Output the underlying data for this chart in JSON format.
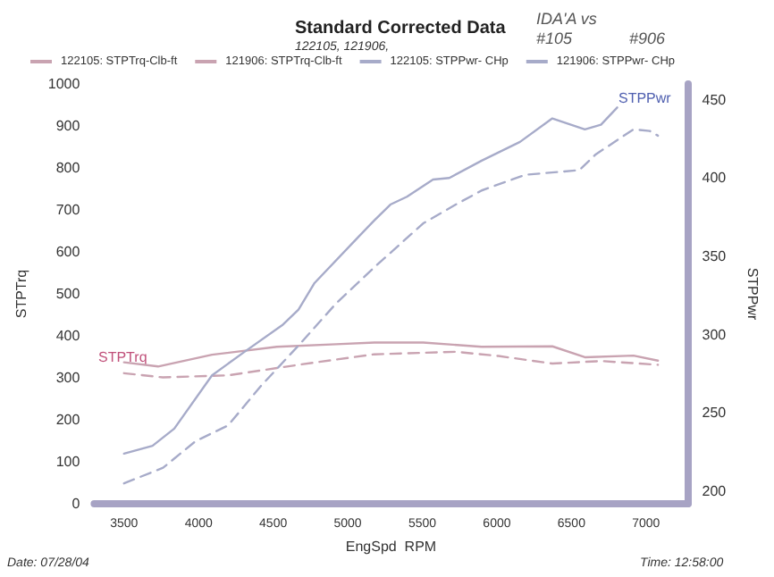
{
  "chart_data": {
    "type": "line",
    "title": "Standard Corrected Data",
    "subtitle": "122105, 121906,",
    "xlabel": "EngSpd  RPM",
    "ylabel": "STPTrq",
    "y2label": "STPPwr",
    "xlim": [
      3300,
      7280
    ],
    "xticks": [
      3500,
      4000,
      4500,
      5000,
      5500,
      6000,
      6500,
      7000
    ],
    "ylim": [
      0,
      1000
    ],
    "yticks": [
      0,
      100,
      200,
      300,
      400,
      500,
      600,
      700,
      800,
      900,
      1000
    ],
    "y2lim": [
      192,
      460
    ],
    "y2ticks": [
      200,
      250,
      300,
      350,
      400,
      450
    ],
    "grid": false,
    "legend": "top",
    "marker": "none",
    "series": [
      {
        "name": "122105: STPTrq-Clb-ft",
        "color": "#c9a3b1",
        "line_style": "solid",
        "x": [
          3500,
          3728,
          4090,
          4525,
          4923,
          5179,
          5506,
          5898,
          6372,
          6590,
          6916,
          7080
        ],
        "values": [
          337,
          327,
          355,
          374,
          380,
          384,
          384,
          374,
          375,
          349,
          353,
          341
        ]
      },
      {
        "name": "121906: STPTrq-Clb-ft",
        "color": "#c9a3b1",
        "line_style": "dashed",
        "x": [
          3500,
          3760,
          4200,
          4670,
          5177,
          5724,
          6010,
          6372,
          6700,
          7080
        ],
        "values": [
          311,
          301,
          306,
          331,
          356,
          362,
          352,
          334,
          340,
          331
        ]
      },
      {
        "name": "122105: STPPwr- CHp",
        "color": "#a7abc9",
        "line_style": "solid",
        "axis": "y2",
        "x": [
          3500,
          3691,
          3837,
          4090,
          4308,
          4561,
          4670,
          4778,
          5068,
          5179,
          5286,
          5397,
          5572,
          5681,
          5898,
          6155,
          6372,
          6590,
          6698,
          6807
        ],
        "values": [
          224,
          229,
          240,
          274,
          289,
          306,
          316,
          333,
          362,
          373,
          383,
          388,
          399,
          400,
          411,
          423,
          438,
          431,
          434,
          445
        ]
      },
      {
        "name": "121906: STPPwr- CHp",
        "color": "#a7abc9",
        "line_style": "dashed",
        "axis": "y2",
        "x": [
          3500,
          3762,
          3980,
          4198,
          4416,
          4670,
          4923,
          5179,
          5506,
          5724,
          5898,
          6191,
          6554,
          6662,
          6916,
          7025,
          7080
        ],
        "values": [
          205,
          215,
          232,
          242,
          267,
          293,
          320,
          343,
          371,
          383,
          392,
          402,
          405,
          415,
          431,
          430,
          427
        ]
      }
    ],
    "annotations": [
      "IDA'A vs",
      "#105",
      "#906",
      "STPTrq",
      "STPPwr",
      "Date: 07/28/04",
      "Time: 12:58:00"
    ]
  }
}
